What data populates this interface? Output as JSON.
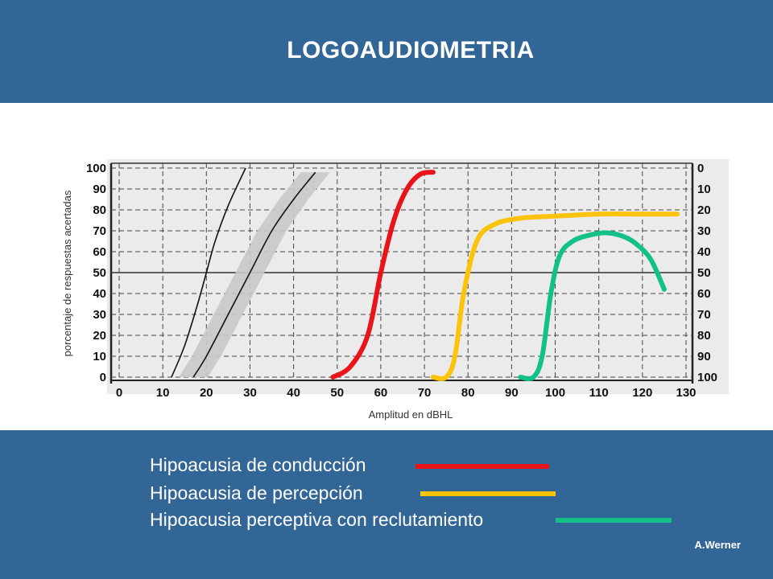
{
  "header": {
    "title": "LOGOAUDIOMETRIA"
  },
  "chart_data": {
    "type": "line",
    "xlabel": "Amplitud en dBHL",
    "ylabel": "porcentaje de respuestas acertadas",
    "x_ticks": [
      "0",
      "10",
      "20",
      "30",
      "40",
      "50",
      "60",
      "70",
      "80",
      "90",
      "100",
      "110",
      "120",
      "130"
    ],
    "y_ticks_left": [
      "0",
      "10",
      "20",
      "30",
      "40",
      "50",
      "60",
      "70",
      "80",
      "90",
      "100"
    ],
    "y_ticks_right": [
      "0",
      "10",
      "20",
      "30",
      "40",
      "50",
      "60",
      "70",
      "80",
      "90",
      "100"
    ],
    "xlim": [
      0,
      130
    ],
    "ylim": [
      0,
      100
    ],
    "grid": true,
    "reference_curves": [
      {
        "points": [
          [
            12,
            0
          ],
          [
            15,
            15
          ],
          [
            18,
            35
          ],
          [
            20,
            50
          ],
          [
            22,
            65
          ],
          [
            25,
            82
          ],
          [
            29,
            100
          ]
        ]
      },
      {
        "points": [
          [
            17,
            0
          ],
          [
            20,
            10
          ],
          [
            25,
            30
          ],
          [
            30,
            50
          ],
          [
            35,
            70
          ],
          [
            40,
            85
          ],
          [
            45,
            98
          ]
        ]
      }
    ],
    "series": [
      {
        "name": "Hipoacusia de conducción",
        "color": "#e8141a",
        "points": [
          [
            49,
            0
          ],
          [
            53,
            5
          ],
          [
            57,
            20
          ],
          [
            60,
            50
          ],
          [
            63,
            75
          ],
          [
            66,
            90
          ],
          [
            69,
            97
          ],
          [
            72,
            98
          ]
        ]
      },
      {
        "name": "Hipoacusia de percepción",
        "color": "#fbc40a",
        "points": [
          [
            72,
            0
          ],
          [
            75,
            0
          ],
          [
            77,
            10
          ],
          [
            79,
            40
          ],
          [
            82,
            65
          ],
          [
            86,
            73
          ],
          [
            92,
            76
          ],
          [
            100,
            77
          ],
          [
            110,
            78
          ],
          [
            120,
            78
          ],
          [
            128,
            78
          ]
        ]
      },
      {
        "name": "Hipoacusia perceptiva con reclutamiento",
        "color": "#14c08a",
        "points": [
          [
            92,
            0
          ],
          [
            95,
            0
          ],
          [
            97,
            10
          ],
          [
            99,
            40
          ],
          [
            101,
            58
          ],
          [
            104,
            65
          ],
          [
            108,
            68
          ],
          [
            112,
            69
          ],
          [
            116,
            67
          ],
          [
            119,
            63
          ],
          [
            122,
            56
          ],
          [
            125,
            42
          ]
        ]
      }
    ]
  },
  "legend": [
    {
      "label": "Hipoacusia de conducción",
      "color": "#e8141a"
    },
    {
      "label": "Hipoacusia de percepción",
      "color": "#fbc40a"
    },
    {
      "label": "Hipoacusia perceptiva con reclutamiento",
      "color": "#14c08a"
    }
  ],
  "footer": {
    "credit": "A.Werner"
  }
}
